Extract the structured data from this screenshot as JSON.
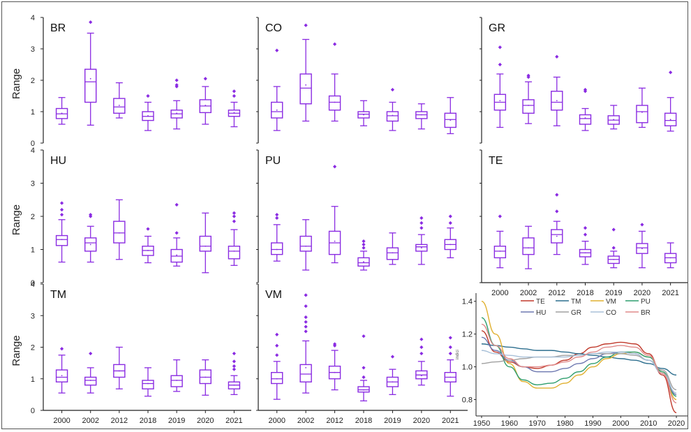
{
  "figure_frame": true,
  "chart_data": [
    {
      "type": "box",
      "title": "BR",
      "ylabel": "Range",
      "ylim": [
        0,
        4
      ],
      "yticks": [
        0,
        1,
        2,
        3,
        4
      ],
      "box_color": "#8a2be2",
      "categories": [
        "2000",
        "2002",
        "2012",
        "2018",
        "2019",
        "2020",
        "2021"
      ],
      "boxes": [
        {
          "min": 0.6,
          "q1": 0.78,
          "median": 0.93,
          "q3": 1.1,
          "max": 1.45,
          "mean": 0.95,
          "outliers": []
        },
        {
          "min": 0.57,
          "q1": 1.3,
          "median": 1.95,
          "q3": 2.35,
          "max": 3.5,
          "mean": 2.05,
          "outliers": [
            3.85
          ]
        },
        {
          "min": 0.8,
          "q1": 0.95,
          "median": 1.15,
          "q3": 1.42,
          "max": 1.92,
          "mean": 1.2,
          "outliers": []
        },
        {
          "min": 0.4,
          "q1": 0.72,
          "median": 0.85,
          "q3": 1.0,
          "max": 1.3,
          "mean": 0.87,
          "outliers": [
            1.5
          ]
        },
        {
          "min": 0.45,
          "q1": 0.8,
          "median": 0.93,
          "q3": 1.05,
          "max": 1.35,
          "mean": 0.95,
          "outliers": [
            1.8,
            1.85,
            2.0
          ]
        },
        {
          "min": 0.6,
          "q1": 0.97,
          "median": 1.18,
          "q3": 1.38,
          "max": 1.8,
          "mean": 1.2,
          "outliers": [
            2.05
          ]
        },
        {
          "min": 0.52,
          "q1": 0.85,
          "median": 0.95,
          "q3": 1.05,
          "max": 1.3,
          "mean": 0.97,
          "outliers": [
            1.5,
            1.65
          ]
        }
      ]
    },
    {
      "type": "box",
      "title": "CO",
      "ylim": [
        0,
        4
      ],
      "box_color": "#8a2be2",
      "categories": [
        "2000",
        "2002",
        "2012",
        "2018",
        "2019",
        "2020",
        "2021"
      ],
      "boxes": [
        {
          "min": 0.4,
          "q1": 0.8,
          "median": 1.0,
          "q3": 1.3,
          "max": 1.8,
          "mean": 1.05,
          "outliers": [
            2.95
          ]
        },
        {
          "min": 0.7,
          "q1": 1.25,
          "median": 1.75,
          "q3": 2.2,
          "max": 3.3,
          "mean": 1.85,
          "outliers": [
            3.75
          ]
        },
        {
          "min": 0.7,
          "q1": 1.05,
          "median": 1.3,
          "q3": 1.5,
          "max": 2.2,
          "mean": 1.3,
          "outliers": [
            3.15
          ]
        },
        {
          "min": 0.55,
          "q1": 0.8,
          "median": 0.92,
          "q3": 1.0,
          "max": 1.35,
          "mean": 0.9,
          "outliers": []
        },
        {
          "min": 0.4,
          "q1": 0.7,
          "median": 0.87,
          "q3": 1.0,
          "max": 1.3,
          "mean": 0.88,
          "outliers": [
            1.7
          ]
        },
        {
          "min": 0.45,
          "q1": 0.78,
          "median": 0.9,
          "q3": 1.0,
          "max": 1.25,
          "mean": 0.9,
          "outliers": []
        },
        {
          "min": 0.3,
          "q1": 0.5,
          "median": 0.75,
          "q3": 0.95,
          "max": 1.45,
          "mean": 0.73,
          "outliers": []
        }
      ]
    },
    {
      "type": "box",
      "title": "GR",
      "ylim": [
        0,
        4
      ],
      "box_color": "#8a2be2",
      "categories": [
        "2000",
        "2002",
        "2012",
        "2018",
        "2019",
        "2020",
        "2021"
      ],
      "boxes": [
        {
          "min": 0.5,
          "q1": 1.05,
          "median": 1.3,
          "q3": 1.55,
          "max": 2.2,
          "mean": 1.35,
          "outliers": [
            2.5,
            3.05
          ]
        },
        {
          "min": 0.62,
          "q1": 0.95,
          "median": 1.2,
          "q3": 1.38,
          "max": 1.95,
          "mean": 1.2,
          "outliers": [
            2.1,
            2.15
          ]
        },
        {
          "min": 0.55,
          "q1": 1.05,
          "median": 1.3,
          "q3": 1.65,
          "max": 2.1,
          "mean": 1.35,
          "outliers": [
            2.75
          ]
        },
        {
          "min": 0.4,
          "q1": 0.6,
          "median": 0.78,
          "q3": 0.9,
          "max": 1.1,
          "mean": 0.8,
          "outliers": [
            1.65,
            1.7
          ]
        },
        {
          "min": 0.45,
          "q1": 0.6,
          "median": 0.73,
          "q3": 0.87,
          "max": 1.2,
          "mean": 0.75,
          "outliers": []
        },
        {
          "min": 0.5,
          "q1": 0.65,
          "median": 1.0,
          "q3": 1.2,
          "max": 1.75,
          "mean": 0.98,
          "outliers": []
        },
        {
          "min": 0.38,
          "q1": 0.55,
          "median": 0.72,
          "q3": 0.95,
          "max": 1.45,
          "mean": 0.75,
          "outliers": [
            2.25
          ]
        }
      ]
    },
    {
      "type": "box",
      "title": "HU",
      "ylabel": "Range",
      "ylim": [
        0,
        4
      ],
      "yticks": [
        0,
        1,
        2,
        3,
        4
      ],
      "box_color": "#8a2be2",
      "categories": [
        "2000",
        "2002",
        "2012",
        "2018",
        "2019",
        "2020",
        "2021"
      ],
      "boxes": [
        {
          "min": 0.62,
          "q1": 1.12,
          "median": 1.3,
          "q3": 1.42,
          "max": 1.9,
          "mean": 1.3,
          "outliers": [
            2.05,
            2.2,
            2.4
          ]
        },
        {
          "min": 0.62,
          "q1": 0.95,
          "median": 1.2,
          "q3": 1.35,
          "max": 1.7,
          "mean": 1.15,
          "outliers": [
            2.0,
            2.05
          ]
        },
        {
          "min": 0.7,
          "q1": 1.2,
          "median": 1.5,
          "q3": 1.85,
          "max": 2.5,
          "mean": 1.5,
          "outliers": []
        },
        {
          "min": 0.6,
          "q1": 0.82,
          "median": 0.97,
          "q3": 1.1,
          "max": 1.4,
          "mean": 0.97,
          "outliers": [
            1.62
          ]
        },
        {
          "min": 0.5,
          "q1": 0.62,
          "median": 0.8,
          "q3": 1.0,
          "max": 1.35,
          "mean": 0.83,
          "outliers": [
            1.5,
            2.35
          ]
        },
        {
          "min": 0.3,
          "q1": 0.95,
          "median": 1.1,
          "q3": 1.4,
          "max": 2.1,
          "mean": 1.1,
          "outliers": []
        },
        {
          "min": 0.52,
          "q1": 0.72,
          "median": 0.95,
          "q3": 1.1,
          "max": 1.6,
          "mean": 0.95,
          "outliers": [
            1.85,
            2.0,
            2.1
          ]
        }
      ]
    },
    {
      "type": "box",
      "title": "PU",
      "ylim": [
        0,
        4
      ],
      "box_color": "#8a2be2",
      "categories": [
        "2000",
        "2002",
        "2012",
        "2018",
        "2019",
        "2020",
        "2021"
      ],
      "boxes": [
        {
          "min": 0.65,
          "q1": 0.85,
          "median": 1.0,
          "q3": 1.2,
          "max": 1.75,
          "mean": 1.0,
          "outliers": [
            1.95,
            2.05
          ]
        },
        {
          "min": 0.38,
          "q1": 0.95,
          "median": 1.1,
          "q3": 1.4,
          "max": 1.9,
          "mean": 1.1,
          "outliers": []
        },
        {
          "min": 0.6,
          "q1": 0.85,
          "median": 1.2,
          "q3": 1.55,
          "max": 2.3,
          "mean": 1.25,
          "outliers": [
            3.5
          ]
        },
        {
          "min": 0.38,
          "q1": 0.5,
          "median": 0.6,
          "q3": 0.75,
          "max": 0.95,
          "mean": 0.63,
          "outliers": [
            1.05,
            1.15,
            1.25
          ]
        },
        {
          "min": 0.55,
          "q1": 0.7,
          "median": 0.9,
          "q3": 1.05,
          "max": 1.5,
          "mean": 0.9,
          "outliers": []
        },
        {
          "min": 0.55,
          "q1": 0.95,
          "median": 1.08,
          "q3": 1.15,
          "max": 1.45,
          "mean": 1.05,
          "outliers": [
            1.65,
            1.8,
            1.95
          ]
        },
        {
          "min": 0.75,
          "q1": 1.0,
          "median": 1.15,
          "q3": 1.3,
          "max": 1.65,
          "mean": 1.15,
          "outliers": [
            1.8,
            2.0
          ]
        }
      ]
    },
    {
      "type": "box",
      "title": "TE",
      "ylim": [
        0,
        4
      ],
      "box_color": "#8a2be2",
      "categories": [
        "2000",
        "2002",
        "2012",
        "2018",
        "2019",
        "2020",
        "2021"
      ],
      "boxes": [
        {
          "min": 0.45,
          "q1": 0.75,
          "median": 0.95,
          "q3": 1.1,
          "max": 1.55,
          "mean": 0.95,
          "outliers": [
            2.0
          ]
        },
        {
          "min": 0.42,
          "q1": 0.85,
          "median": 1.05,
          "q3": 1.35,
          "max": 1.7,
          "mean": 1.05,
          "outliers": []
        },
        {
          "min": 0.85,
          "q1": 1.2,
          "median": 1.45,
          "q3": 1.6,
          "max": 1.85,
          "mean": 1.4,
          "outliers": [
            2.15,
            2.65
          ]
        },
        {
          "min": 0.55,
          "q1": 0.78,
          "median": 0.9,
          "q3": 1.0,
          "max": 1.25,
          "mean": 0.9,
          "outliers": [
            1.45,
            1.65
          ]
        },
        {
          "min": 0.45,
          "q1": 0.58,
          "median": 0.7,
          "q3": 0.8,
          "max": 0.95,
          "mean": 0.7,
          "outliers": [
            1.05,
            1.6
          ]
        },
        {
          "min": 0.45,
          "q1": 0.88,
          "median": 1.05,
          "q3": 1.18,
          "max": 1.55,
          "mean": 1.03,
          "outliers": [
            1.75
          ]
        },
        {
          "min": 0.45,
          "q1": 0.6,
          "median": 0.75,
          "q3": 0.88,
          "max": 1.2,
          "mean": 0.75,
          "outliers": []
        }
      ]
    },
    {
      "type": "box",
      "title": "TM",
      "ylabel": "Range",
      "ylim": [
        0,
        4
      ],
      "yticks": [
        0,
        1,
        2,
        3,
        4
      ],
      "box_color": "#8a2be2",
      "categories": [
        "2000",
        "2002",
        "2012",
        "2018",
        "2019",
        "2020",
        "2021"
      ],
      "boxes": [
        {
          "min": 0.55,
          "q1": 0.9,
          "median": 1.05,
          "q3": 1.28,
          "max": 1.75,
          "mean": 1.1,
          "outliers": [
            1.95
          ]
        },
        {
          "min": 0.55,
          "q1": 0.8,
          "median": 0.95,
          "q3": 1.05,
          "max": 1.35,
          "mean": 0.95,
          "outliers": [
            1.8
          ]
        },
        {
          "min": 0.68,
          "q1": 1.05,
          "median": 1.25,
          "q3": 1.45,
          "max": 2.0,
          "mean": 1.25,
          "outliers": []
        },
        {
          "min": 0.45,
          "q1": 0.68,
          "median": 0.85,
          "q3": 0.95,
          "max": 1.35,
          "mean": 0.85,
          "outliers": []
        },
        {
          "min": 0.6,
          "q1": 0.75,
          "median": 0.95,
          "q3": 1.1,
          "max": 1.6,
          "mean": 0.95,
          "outliers": []
        },
        {
          "min": 0.48,
          "q1": 0.85,
          "median": 1.05,
          "q3": 1.28,
          "max": 1.6,
          "mean": 1.05,
          "outliers": []
        },
        {
          "min": 0.5,
          "q1": 0.68,
          "median": 0.8,
          "q3": 0.9,
          "max": 1.1,
          "mean": 0.8,
          "outliers": [
            1.3,
            1.4,
            1.55,
            1.8
          ]
        }
      ]
    },
    {
      "type": "box",
      "title": "VM",
      "ylim": [
        0,
        4
      ],
      "box_color": "#8a2be2",
      "categories": [
        "2000",
        "2002",
        "2012",
        "2018",
        "2019",
        "2020",
        "2021"
      ],
      "boxes": [
        {
          "min": 0.35,
          "q1": 0.85,
          "median": 1.0,
          "q3": 1.2,
          "max": 1.55,
          "mean": 1.0,
          "outliers": [
            1.75,
            2.05,
            2.4
          ]
        },
        {
          "min": 0.55,
          "q1": 0.9,
          "median": 1.15,
          "q3": 1.45,
          "max": 2.2,
          "mean": 1.35,
          "outliers": [
            2.5,
            2.65,
            2.8,
            2.95,
            3.3,
            3.65
          ]
        },
        {
          "min": 0.65,
          "q1": 1.0,
          "median": 1.2,
          "q3": 1.4,
          "max": 1.9,
          "mean": 1.2,
          "outliers": [
            2.05,
            2.1
          ]
        },
        {
          "min": 0.3,
          "q1": 0.58,
          "median": 0.65,
          "q3": 0.75,
          "max": 0.95,
          "mean": 0.65,
          "outliers": [
            1.05,
            1.35,
            2.35
          ]
        },
        {
          "min": 0.5,
          "q1": 0.75,
          "median": 0.9,
          "q3": 1.05,
          "max": 1.3,
          "mean": 0.9,
          "outliers": [
            1.7
          ]
        },
        {
          "min": 0.8,
          "q1": 1.0,
          "median": 1.12,
          "q3": 1.25,
          "max": 1.55,
          "mean": 1.1,
          "outliers": [
            1.8,
            2.0,
            2.25
          ]
        },
        {
          "min": 0.45,
          "q1": 0.9,
          "median": 1.05,
          "q3": 1.2,
          "max": 1.6,
          "mean": 1.05,
          "outliers": [
            1.8,
            2.0,
            2.3
          ]
        }
      ]
    },
    {
      "type": "line",
      "title": "",
      "ylabel": "indici",
      "xlim": [
        1948,
        2024
      ],
      "ylim": [
        0.7,
        1.45
      ],
      "xticks": [
        1950,
        1960,
        1970,
        1980,
        1990,
        2000,
        2010,
        2020
      ],
      "yticks": [
        0.8,
        1.0,
        1.2,
        1.4
      ],
      "legend_position": "top",
      "x": [
        1950,
        1955,
        1960,
        1965,
        1970,
        1975,
        1980,
        1985,
        1990,
        1995,
        2000,
        2005,
        2010,
        2015,
        2020
      ],
      "series": [
        {
          "name": "TE",
          "color": "#c0392b",
          "values": [
            1.22,
            1.09,
            1.03,
            1.0,
            0.99,
            1.01,
            1.04,
            1.08,
            1.12,
            1.14,
            1.15,
            1.14,
            1.08,
            0.95,
            0.72
          ]
        },
        {
          "name": "TM",
          "color": "#2c6e8e",
          "values": [
            1.14,
            1.13,
            1.12,
            1.11,
            1.1,
            1.1,
            1.09,
            1.08,
            1.07,
            1.06,
            1.05,
            1.04,
            1.02,
            0.99,
            0.95
          ]
        },
        {
          "name": "VM",
          "color": "#e0b030",
          "values": [
            1.4,
            1.2,
            1.02,
            0.91,
            0.87,
            0.87,
            0.9,
            0.95,
            1.0,
            1.05,
            1.08,
            1.09,
            1.06,
            0.97,
            0.8
          ]
        },
        {
          "name": "PU",
          "color": "#2e9e6e",
          "values": [
            1.3,
            1.13,
            1.0,
            0.92,
            0.89,
            0.9,
            0.93,
            0.97,
            1.02,
            1.06,
            1.09,
            1.09,
            1.06,
            0.97,
            0.82
          ]
        },
        {
          "name": "HU",
          "color": "#6d78b0",
          "values": [
            1.18,
            1.1,
            1.04,
            1.0,
            0.97,
            0.97,
            0.99,
            1.02,
            1.05,
            1.08,
            1.09,
            1.08,
            1.04,
            0.96,
            0.83
          ]
        },
        {
          "name": "GR",
          "color": "#a0a0a0",
          "values": [
            1.02,
            1.03,
            1.04,
            1.05,
            1.06,
            1.06,
            1.07,
            1.07,
            1.08,
            1.08,
            1.08,
            1.07,
            1.04,
            0.98,
            0.86
          ]
        },
        {
          "name": "CO",
          "color": "#a8c0d8",
          "values": [
            1.1,
            1.08,
            1.07,
            1.06,
            1.06,
            1.06,
            1.06,
            1.07,
            1.08,
            1.09,
            1.09,
            1.08,
            1.04,
            0.96,
            0.84
          ]
        },
        {
          "name": "BR",
          "color": "#e08a8a",
          "values": [
            1.26,
            1.13,
            1.05,
            1.0,
            1.0,
            1.01,
            1.03,
            1.06,
            1.09,
            1.12,
            1.13,
            1.12,
            1.07,
            0.96,
            0.78
          ]
        }
      ]
    }
  ]
}
